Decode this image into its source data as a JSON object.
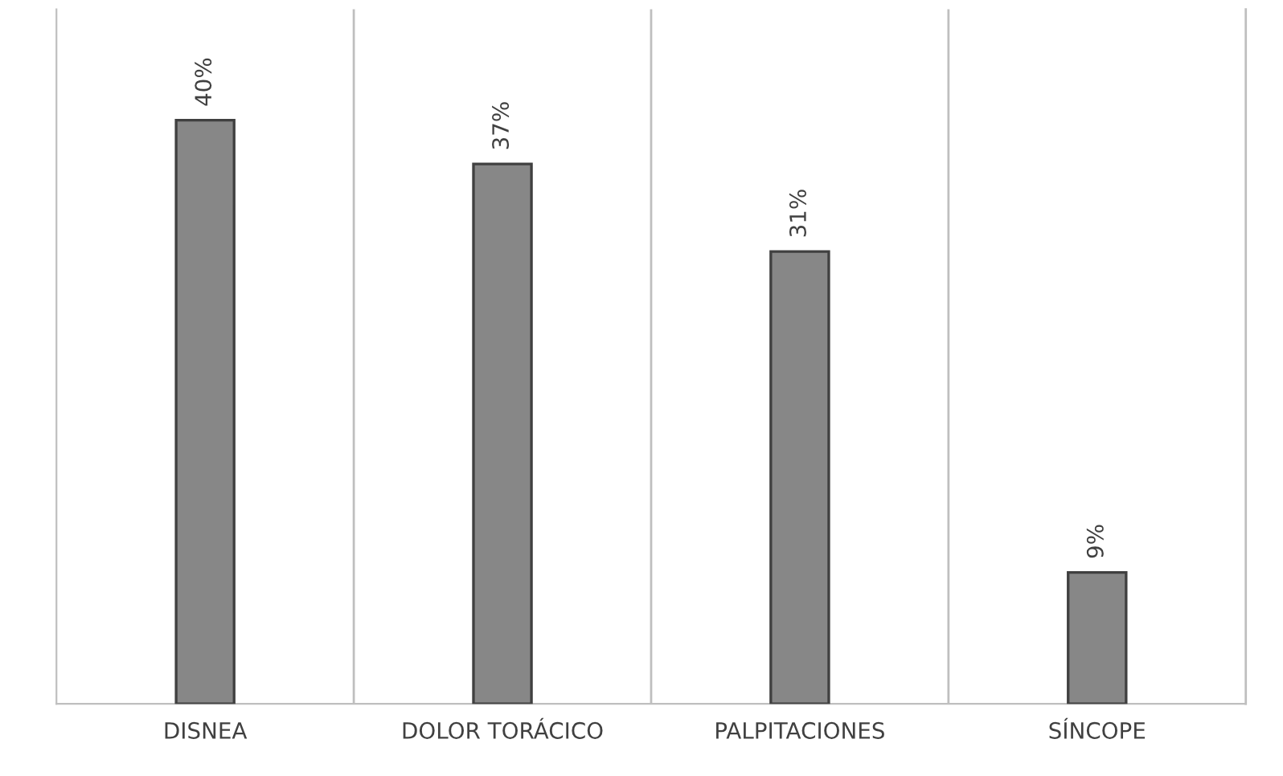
{
  "chart_data": {
    "type": "bar",
    "categories": [
      "DISNEA",
      "DOLOR TORÁCICO",
      "PALPITACIONES",
      "SÍNCOPE"
    ],
    "values": [
      40,
      37,
      31,
      9
    ],
    "color": "#878787",
    "value_labels": [
      "40%",
      "37%",
      "31%",
      "9%"
    ],
    "grid": "x",
    "legend": false
  }
}
